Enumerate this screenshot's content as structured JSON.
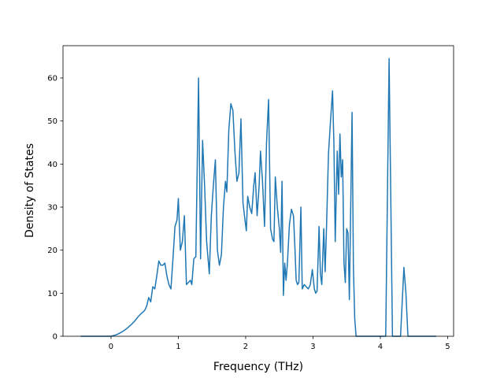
{
  "chart_data": {
    "type": "line",
    "xlabel": "Frequency (THz)",
    "ylabel": "Density of States",
    "xlim": [
      -0.713,
      5.088
    ],
    "ylim": [
      0,
      67.5
    ],
    "xticks": [
      0,
      1,
      2,
      3,
      4,
      5
    ],
    "yticks": [
      0,
      10,
      20,
      30,
      40,
      50,
      60
    ],
    "series": [
      {
        "color": "#1f77b4",
        "x": [
          -0.45,
          -0.3,
          -0.15,
          0.0,
          0.05,
          0.1,
          0.15,
          0.2,
          0.25,
          0.3,
          0.35,
          0.4,
          0.45,
          0.5,
          0.53,
          0.56,
          0.59,
          0.62,
          0.65,
          0.68,
          0.71,
          0.74,
          0.77,
          0.8,
          0.83,
          0.86,
          0.89,
          0.92,
          0.95,
          0.98,
          1.0,
          1.03,
          1.06,
          1.09,
          1.12,
          1.15,
          1.18,
          1.2,
          1.23,
          1.26,
          1.3,
          1.33,
          1.36,
          1.39,
          1.42,
          1.46,
          1.49,
          1.52,
          1.55,
          1.58,
          1.61,
          1.64,
          1.67,
          1.7,
          1.72,
          1.75,
          1.78,
          1.81,
          1.84,
          1.87,
          1.9,
          1.93,
          1.96,
          1.99,
          2.01,
          2.03,
          2.06,
          2.09,
          2.12,
          2.14,
          2.17,
          2.2,
          2.22,
          2.25,
          2.28,
          2.31,
          2.34,
          2.37,
          2.4,
          2.42,
          2.44,
          2.47,
          2.5,
          2.52,
          2.54,
          2.56,
          2.58,
          2.6,
          2.62,
          2.65,
          2.68,
          2.71,
          2.73,
          2.75,
          2.77,
          2.79,
          2.82,
          2.84,
          2.87,
          2.9,
          2.93,
          2.96,
          2.99,
          3.02,
          3.04,
          3.06,
          3.09,
          3.11,
          3.13,
          3.16,
          3.18,
          3.2,
          3.23,
          3.26,
          3.29,
          3.31,
          3.33,
          3.36,
          3.38,
          3.4,
          3.42,
          3.44,
          3.46,
          3.48,
          3.5,
          3.52,
          3.54,
          3.56,
          3.58,
          3.6,
          3.62,
          3.64,
          3.8,
          4.0,
          4.08,
          4.13,
          4.18,
          4.3,
          4.35,
          4.38,
          4.41,
          4.6,
          4.83
        ],
        "values": [
          0,
          0,
          0,
          0,
          0.2,
          0.5,
          0.9,
          1.4,
          2.0,
          2.7,
          3.5,
          4.5,
          5.3,
          6,
          7,
          9,
          8,
          11.5,
          11,
          14,
          17.5,
          16.5,
          16.5,
          17,
          14,
          12,
          11,
          18,
          25.5,
          27,
          32,
          20,
          22,
          28,
          12,
          12.5,
          13,
          12,
          18,
          18.5,
          60,
          18,
          45.5,
          35,
          22,
          14.5,
          28,
          35,
          41,
          20,
          16.5,
          19,
          30,
          36,
          33.5,
          48,
          54,
          52.5,
          43,
          36,
          38,
          50.5,
          31,
          27,
          24.5,
          32.5,
          30,
          28.5,
          35,
          38,
          28,
          35,
          43,
          36,
          25.5,
          45,
          55,
          25,
          22.5,
          22,
          37,
          30,
          25,
          19.5,
          36,
          9.5,
          17,
          13,
          17,
          26,
          29.5,
          28,
          21,
          13,
          12,
          12.5,
          30,
          11,
          12,
          11.5,
          11,
          12,
          15.5,
          11,
          10,
          10.5,
          25.5,
          14.5,
          12,
          25,
          15,
          25,
          42.5,
          50,
          57,
          45,
          22,
          43,
          33,
          47,
          37,
          41,
          17,
          12.5,
          25,
          24,
          8.5,
          30,
          52,
          16,
          4,
          0,
          0,
          0,
          0,
          64.5,
          0,
          0,
          16,
          10,
          0,
          0,
          0
        ]
      }
    ]
  }
}
